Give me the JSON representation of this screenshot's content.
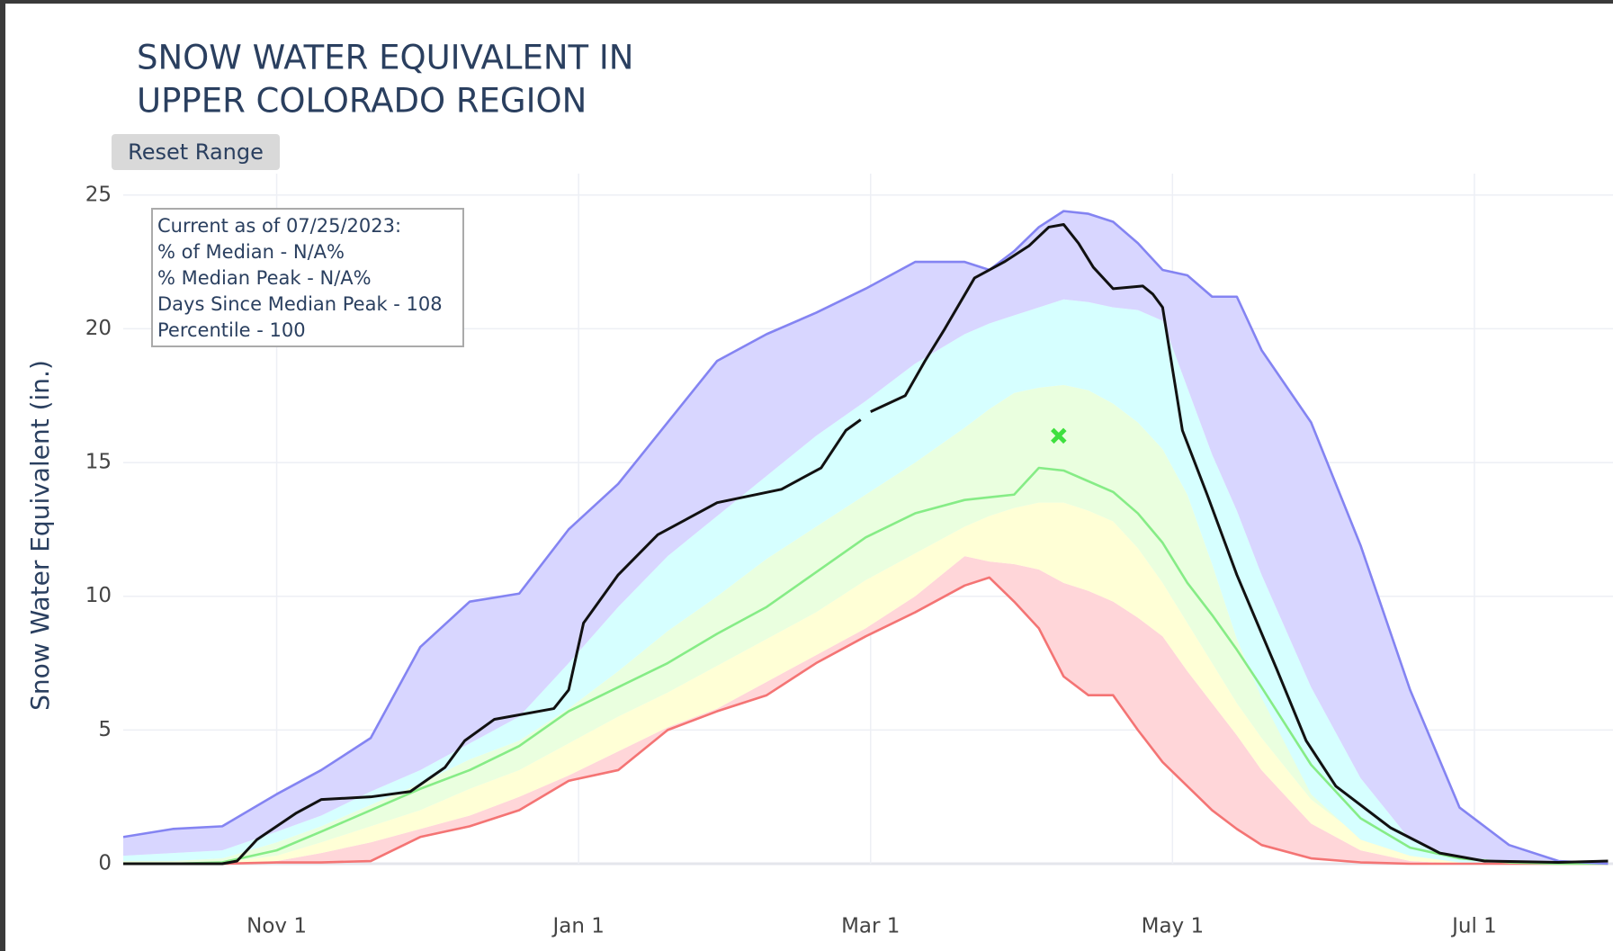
{
  "chart_data": {
    "type": "line",
    "title": [
      "SNOW WATER EQUIVALENT IN",
      "UPPER COLORADO REGION"
    ],
    "button": "Reset Range",
    "ylabel": "Snow Water Equivalent (in.)",
    "annotation": [
      "Current as of 07/25/2023:",
      "% of Median - N/A%",
      "% Median Peak - N/A%",
      "Days Since Median Peak - 108",
      "Percentile - 100"
    ],
    "xlim": [
      0,
      301
    ],
    "ylim": [
      0,
      25.8
    ],
    "xticks": [
      {
        "value": 31,
        "label": "Nov 1"
      },
      {
        "value": 92,
        "label": "Jan 1"
      },
      {
        "value": 151,
        "label": "Mar 1"
      },
      {
        "value": 212,
        "label": "May 1"
      },
      {
        "value": 273,
        "label": "Jul 1"
      }
    ],
    "yticks": [
      0,
      5,
      10,
      15,
      20,
      25
    ],
    "grid": true,
    "x": [
      0,
      10,
      20,
      31,
      40,
      50,
      60,
      70,
      80,
      90,
      100,
      110,
      120,
      130,
      140,
      150,
      160,
      170,
      175,
      180,
      185,
      190,
      195,
      200,
      205,
      210,
      215,
      220,
      225,
      230,
      240,
      250,
      260,
      270,
      280,
      290,
      300
    ],
    "series": [
      {
        "line_color": "#f47474",
        "values": [
          0,
          0,
          0,
          0.05,
          0.05,
          0.1,
          1.0,
          1.4,
          2.0,
          3.1,
          3.5,
          5.0,
          5.7,
          6.3,
          7.5,
          8.5,
          9.4,
          10.4,
          10.7,
          9.8,
          8.8,
          7.0,
          6.3,
          6.3,
          5.0,
          3.8,
          2.9,
          2.0,
          1.3,
          0.7,
          0.2,
          0.05,
          0,
          0,
          0,
          0,
          0
        ]
      },
      {
        "fill_color": "#ffd6d9",
        "values": [
          0,
          0,
          0,
          0.1,
          0.4,
          0.8,
          1.3,
          1.8,
          2.5,
          3.3,
          4.2,
          5.1,
          5.8,
          6.8,
          7.8,
          8.8,
          10.0,
          11.5,
          11.3,
          11.2,
          11.0,
          10.5,
          10.2,
          9.8,
          9.2,
          8.5,
          7.2,
          6.0,
          4.8,
          3.5,
          1.5,
          0.5,
          0.1,
          0,
          0,
          0,
          0
        ]
      },
      {
        "fill_color": "#ffffd6",
        "values": [
          0,
          0,
          0.05,
          0.3,
          0.8,
          1.4,
          2.0,
          2.8,
          3.5,
          4.5,
          5.5,
          6.4,
          7.4,
          8.4,
          9.4,
          10.6,
          11.6,
          12.6,
          13.0,
          13.3,
          13.5,
          13.5,
          13.2,
          12.8,
          11.8,
          10.5,
          9.0,
          7.5,
          6.0,
          4.7,
          2.4,
          1.0,
          0.3,
          0.05,
          0,
          0,
          0
        ]
      },
      {
        "fill_color": "#eaffdf",
        "line_color": "#86ec86",
        "values": [
          0,
          0,
          0.05,
          0.5,
          1.2,
          2.0,
          2.8,
          3.5,
          4.4,
          5.7,
          6.6,
          7.5,
          8.6,
          9.6,
          10.9,
          12.2,
          13.1,
          13.6,
          13.7,
          13.8,
          14.8,
          14.7,
          14.3,
          13.9,
          13.1,
          12.0,
          10.5,
          9.3,
          8.0,
          6.6,
          3.7,
          1.7,
          0.6,
          0.2,
          0.05,
          0,
          0
        ]
      },
      {
        "fill_color": "#eaffdf",
        "values": [
          0.1,
          0.1,
          0.2,
          0.8,
          1.4,
          2.2,
          3.0,
          3.9,
          4.6,
          5.8,
          7.2,
          8.7,
          10.0,
          11.4,
          12.6,
          13.8,
          15.0,
          16.3,
          17.0,
          17.6,
          17.8,
          17.9,
          17.7,
          17.2,
          16.5,
          15.5,
          13.8,
          11.2,
          8.4,
          6.2,
          2.6,
          0.9,
          0.3,
          0.05,
          0,
          0,
          0
        ]
      },
      {
        "fill_color": "#d6ffff",
        "values": [
          0.3,
          0.4,
          0.5,
          1.2,
          1.8,
          2.7,
          3.5,
          4.5,
          5.5,
          7.5,
          9.6,
          11.5,
          13.0,
          14.5,
          16.0,
          17.3,
          18.7,
          19.8,
          20.2,
          20.5,
          20.8,
          21.1,
          21.0,
          20.8,
          20.7,
          20.3,
          17.8,
          15.3,
          13.2,
          10.8,
          6.6,
          3.2,
          0.9,
          0.2,
          0.05,
          0,
          0
        ]
      },
      {
        "fill_color": "#d8d6ff",
        "line_color": "#8484f2",
        "values": [
          1.0,
          1.3,
          1.4,
          2.6,
          3.5,
          4.7,
          8.1,
          9.8,
          10.1,
          12.5,
          14.2,
          16.5,
          18.8,
          19.8,
          20.6,
          21.5,
          22.5,
          22.5,
          22.2,
          22.9,
          23.8,
          24.4,
          24.3,
          24.0,
          23.2,
          22.2,
          22.0,
          21.2,
          21.2,
          19.2,
          16.5,
          11.9,
          6.5,
          2.1,
          0.7,
          0.1,
          0
        ]
      },
      {
        "line_color": "#111111",
        "line_width": 3,
        "x": [
          0,
          20,
          23,
          27,
          35,
          40,
          50,
          58,
          65,
          69,
          75,
          87,
          90,
          93,
          100,
          108,
          120,
          133,
          141,
          146,
          149,
          150,
          151,
          158,
          162,
          166,
          172,
          178,
          183,
          187,
          190,
          193,
          196,
          200,
          206,
          208,
          210,
          214,
          219,
          225,
          233,
          239,
          245,
          256,
          266,
          275,
          290,
          300
        ],
        "values": [
          0,
          0,
          0.1,
          0.9,
          1.9,
          2.4,
          2.5,
          2.7,
          3.6,
          4.6,
          5.4,
          5.8,
          6.5,
          9.0,
          10.8,
          12.3,
          13.5,
          14.0,
          14.8,
          16.2,
          16.6,
          null,
          16.9,
          17.5,
          18.8,
          20.0,
          21.9,
          22.5,
          23.1,
          23.8,
          23.9,
          23.2,
          22.3,
          21.5,
          21.6,
          21.3,
          20.8,
          16.2,
          13.8,
          10.8,
          7.3,
          4.6,
          2.9,
          1.35,
          0.4,
          0.1,
          0.05,
          0.1
        ]
      }
    ],
    "markers": [
      {
        "x": 189,
        "y": 16.0,
        "color": "#3ee03e"
      }
    ]
  }
}
